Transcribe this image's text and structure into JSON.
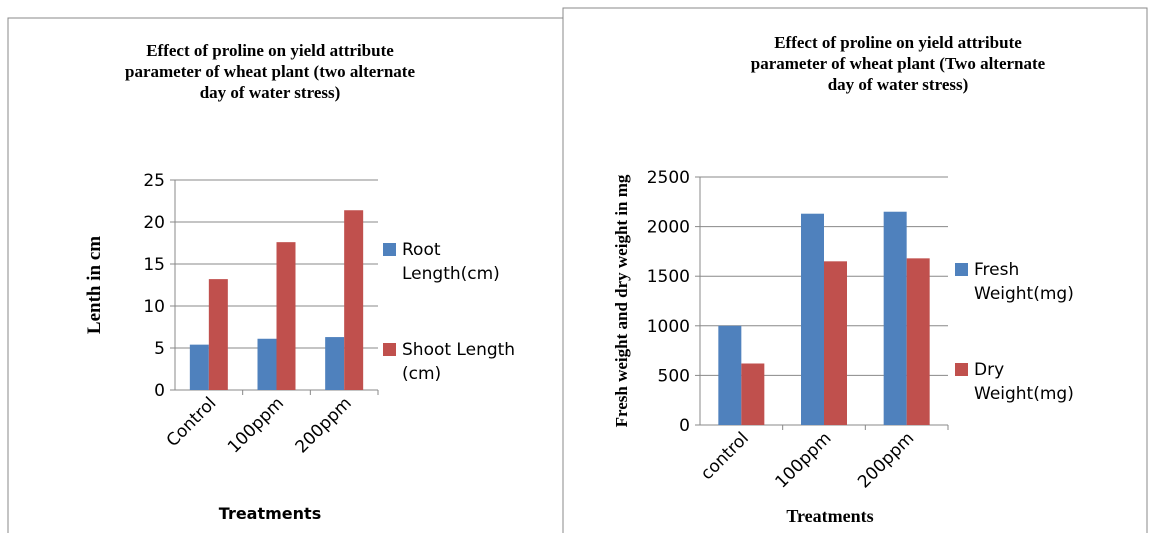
{
  "chart_data": [
    {
      "type": "bar",
      "title": "Effect of proline on yield attribute parameter of wheat plant (two alternate day of water stress)",
      "xlabel": "Treatments",
      "ylabel": "Lenth in cm",
      "categories": [
        "Control",
        "100ppm",
        "200ppm"
      ],
      "series": [
        {
          "name": "Root Length(cm)",
          "color": "#4f81bd",
          "values": [
            5.4,
            6.1,
            6.3
          ]
        },
        {
          "name": "Shoot Length (cm)",
          "color": "#c0504d",
          "values": [
            13.2,
            17.6,
            21.4
          ]
        }
      ],
      "ylim": [
        0,
        25
      ],
      "yticks": [
        0,
        5,
        10,
        15,
        20,
        25
      ],
      "grid": true,
      "legend": "right"
    },
    {
      "type": "bar",
      "title": "Effect of proline on yield attribute parameter of wheat plant (Two alternate day of water stress)",
      "xlabel": "Treatments",
      "ylabel": "Fresh weight and dry weight in mg",
      "categories": [
        "control",
        "100ppm",
        "200ppm"
      ],
      "series": [
        {
          "name": "Fresh Weight(mg)",
          "color": "#4f81bd",
          "values": [
            1000,
            2130,
            2150
          ]
        },
        {
          "name": "Dry Weight(mg)",
          "color": "#c0504d",
          "values": [
            620,
            1650,
            1680
          ]
        }
      ],
      "ylim": [
        0,
        2500
      ],
      "yticks": [
        0,
        500,
        1000,
        1500,
        2000,
        2500
      ],
      "grid": true,
      "legend": "right"
    }
  ]
}
